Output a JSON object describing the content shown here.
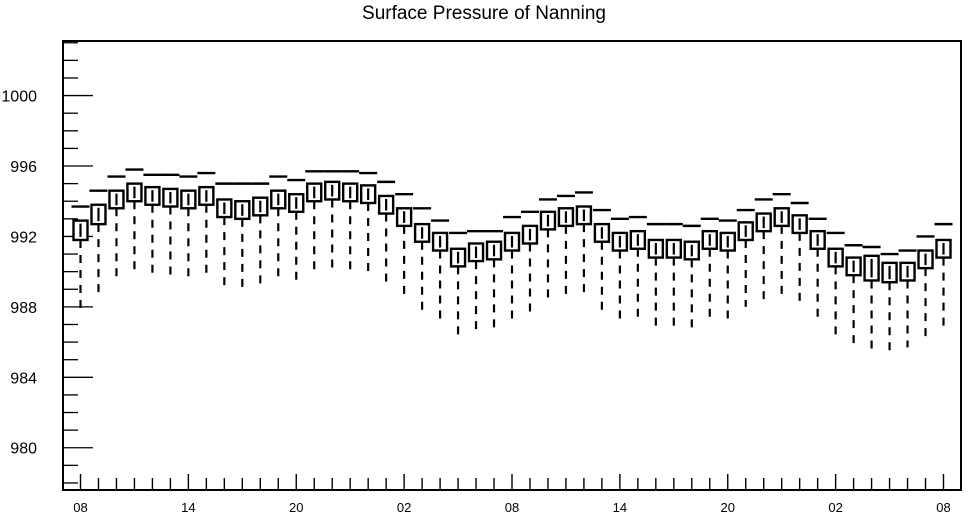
{
  "chart_data": {
    "type": "box",
    "title": "Surface Pressure of Nanning",
    "xlabel": "",
    "ylabel": "",
    "ylim": [
      977.6,
      1003.1
    ],
    "y_ticks": [
      980,
      984,
      988,
      992,
      996,
      1000
    ],
    "x_tick_labels": [
      "08",
      "14",
      "20",
      "02",
      "08",
      "14",
      "20",
      "02",
      "08"
    ],
    "x_tick_positions": [
      0,
      6,
      12,
      18,
      24,
      30,
      36,
      42,
      48
    ],
    "grid": false,
    "boxes": [
      {
        "x": 0,
        "whisker_low": 987.7,
        "q1": 991.8,
        "median": 992.3,
        "q3": 992.9,
        "whisker_high": 993.7
      },
      {
        "x": 1,
        "whisker_low": 988.8,
        "q1": 992.7,
        "median": 993.2,
        "q3": 993.8,
        "whisker_high": 994.6
      },
      {
        "x": 2,
        "whisker_low": 989.6,
        "q1": 993.6,
        "median": 994.1,
        "q3": 994.6,
        "whisker_high": 995.4
      },
      {
        "x": 3,
        "whisker_low": 990.0,
        "q1": 994.0,
        "median": 994.5,
        "q3": 995.0,
        "whisker_high": 995.8
      },
      {
        "x": 4,
        "whisker_low": 989.8,
        "q1": 993.8,
        "median": 994.3,
        "q3": 994.8,
        "whisker_high": 995.5
      },
      {
        "x": 5,
        "whisker_low": 989.7,
        "q1": 993.7,
        "median": 994.2,
        "q3": 994.7,
        "whisker_high": 995.5
      },
      {
        "x": 6,
        "whisker_low": 989.6,
        "q1": 993.6,
        "median": 994.1,
        "q3": 994.6,
        "whisker_high": 995.4
      },
      {
        "x": 7,
        "whisker_low": 989.8,
        "q1": 993.8,
        "median": 994.3,
        "q3": 994.8,
        "whisker_high": 995.6
      },
      {
        "x": 8,
        "whisker_low": 989.1,
        "q1": 993.1,
        "median": 993.6,
        "q3": 994.1,
        "whisker_high": 995.0
      },
      {
        "x": 9,
        "whisker_low": 989.0,
        "q1": 993.0,
        "median": 993.5,
        "q3": 994.0,
        "whisker_high": 995.0
      },
      {
        "x": 10,
        "whisker_low": 989.2,
        "q1": 993.2,
        "median": 993.7,
        "q3": 994.2,
        "whisker_high": 995.0
      },
      {
        "x": 11,
        "whisker_low": 989.6,
        "q1": 993.6,
        "median": 994.1,
        "q3": 994.6,
        "whisker_high": 995.4
      },
      {
        "x": 12,
        "whisker_low": 989.4,
        "q1": 993.4,
        "median": 993.9,
        "q3": 994.4,
        "whisker_high": 995.2
      },
      {
        "x": 13,
        "whisker_low": 990.0,
        "q1": 994.0,
        "median": 994.5,
        "q3": 995.0,
        "whisker_high": 995.7
      },
      {
        "x": 14,
        "whisker_low": 990.1,
        "q1": 994.1,
        "median": 994.6,
        "q3": 995.1,
        "whisker_high": 995.7
      },
      {
        "x": 15,
        "whisker_low": 990.0,
        "q1": 994.0,
        "median": 994.5,
        "q3": 995.0,
        "whisker_high": 995.7
      },
      {
        "x": 16,
        "whisker_low": 989.9,
        "q1": 993.9,
        "median": 994.4,
        "q3": 994.9,
        "whisker_high": 995.6
      },
      {
        "x": 17,
        "whisker_low": 989.3,
        "q1": 993.3,
        "median": 993.8,
        "q3": 994.3,
        "whisker_high": 995.1
      },
      {
        "x": 18,
        "whisker_low": 988.7,
        "q1": 992.6,
        "median": 993.1,
        "q3": 993.6,
        "whisker_high": 994.4
      },
      {
        "x": 19,
        "whisker_low": 987.8,
        "q1": 991.7,
        "median": 992.2,
        "q3": 992.7,
        "whisker_high": 993.6
      },
      {
        "x": 20,
        "whisker_low": 987.3,
        "q1": 991.2,
        "median": 991.7,
        "q3": 992.2,
        "whisker_high": 992.9
      },
      {
        "x": 21,
        "whisker_low": 986.4,
        "q1": 990.3,
        "median": 990.8,
        "q3": 991.3,
        "whisker_high": 992.2
      },
      {
        "x": 22,
        "whisker_low": 986.6,
        "q1": 990.6,
        "median": 991.1,
        "q3": 991.6,
        "whisker_high": 992.3
      },
      {
        "x": 23,
        "whisker_low": 986.8,
        "q1": 990.7,
        "median": 991.2,
        "q3": 991.7,
        "whisker_high": 992.3
      },
      {
        "x": 24,
        "whisker_low": 987.2,
        "q1": 991.2,
        "median": 991.7,
        "q3": 992.2,
        "whisker_high": 993.1
      },
      {
        "x": 25,
        "whisker_low": 987.6,
        "q1": 991.6,
        "median": 992.1,
        "q3": 992.6,
        "whisker_high": 993.4
      },
      {
        "x": 26,
        "whisker_low": 988.4,
        "q1": 992.4,
        "median": 992.9,
        "q3": 993.4,
        "whisker_high": 994.1
      },
      {
        "x": 27,
        "whisker_low": 988.6,
        "q1": 992.6,
        "median": 993.1,
        "q3": 993.6,
        "whisker_high": 994.3
      },
      {
        "x": 28,
        "whisker_low": 988.8,
        "q1": 992.7,
        "median": 993.2,
        "q3": 993.7,
        "whisker_high": 994.5
      },
      {
        "x": 29,
        "whisker_low": 987.7,
        "q1": 991.7,
        "median": 992.2,
        "q3": 992.7,
        "whisker_high": 993.5
      },
      {
        "x": 30,
        "whisker_low": 987.2,
        "q1": 991.2,
        "median": 991.7,
        "q3": 992.2,
        "whisker_high": 993.0
      },
      {
        "x": 31,
        "whisker_low": 987.3,
        "q1": 991.3,
        "median": 991.8,
        "q3": 992.3,
        "whisker_high": 993.1
      },
      {
        "x": 32,
        "whisker_low": 986.9,
        "q1": 990.8,
        "median": 991.3,
        "q3": 991.8,
        "whisker_high": 992.7
      },
      {
        "x": 33,
        "whisker_low": 986.8,
        "q1": 990.8,
        "median": 991.3,
        "q3": 991.8,
        "whisker_high": 992.7
      },
      {
        "x": 34,
        "whisker_low": 986.8,
        "q1": 990.7,
        "median": 991.2,
        "q3": 991.7,
        "whisker_high": 992.6
      },
      {
        "x": 35,
        "whisker_low": 987.3,
        "q1": 991.3,
        "median": 991.8,
        "q3": 992.3,
        "whisker_high": 993.0
      },
      {
        "x": 36,
        "whisker_low": 987.3,
        "q1": 991.2,
        "median": 991.7,
        "q3": 992.2,
        "whisker_high": 992.9
      },
      {
        "x": 37,
        "whisker_low": 988.0,
        "q1": 991.8,
        "median": 992.3,
        "q3": 992.8,
        "whisker_high": 993.5
      },
      {
        "x": 38,
        "whisker_low": 988.3,
        "q1": 992.3,
        "median": 992.8,
        "q3": 993.3,
        "whisker_high": 994.1
      },
      {
        "x": 39,
        "whisker_low": 988.6,
        "q1": 992.6,
        "median": 993.1,
        "q3": 993.6,
        "whisker_high": 994.4
      },
      {
        "x": 40,
        "whisker_low": 988.3,
        "q1": 992.2,
        "median": 992.7,
        "q3": 993.2,
        "whisker_high": 993.9
      },
      {
        "x": 41,
        "whisker_low": 987.4,
        "q1": 991.3,
        "median": 991.8,
        "q3": 992.3,
        "whisker_high": 993.0
      },
      {
        "x": 42,
        "whisker_low": 986.4,
        "q1": 990.3,
        "median": 990.8,
        "q3": 991.3,
        "whisker_high": 992.2
      },
      {
        "x": 43,
        "whisker_low": 985.9,
        "q1": 989.8,
        "median": 990.3,
        "q3": 990.8,
        "whisker_high": 991.5
      },
      {
        "x": 44,
        "whisker_low": 985.4,
        "q1": 989.5,
        "median": 990.2,
        "q3": 990.9,
        "whisker_high": 991.4
      },
      {
        "x": 45,
        "whisker_low": 985.3,
        "q1": 989.4,
        "median": 990.0,
        "q3": 990.5,
        "whisker_high": 991.0
      },
      {
        "x": 46,
        "whisker_low": 985.7,
        "q1": 989.5,
        "median": 990.0,
        "q3": 990.5,
        "whisker_high": 991.2
      },
      {
        "x": 47,
        "whisker_low": 986.3,
        "q1": 990.2,
        "median": 990.7,
        "q3": 991.2,
        "whisker_high": 992.0
      },
      {
        "x": 48,
        "whisker_low": 986.8,
        "q1": 990.8,
        "median": 991.3,
        "q3": 991.8,
        "whisker_high": 992.7
      }
    ]
  }
}
